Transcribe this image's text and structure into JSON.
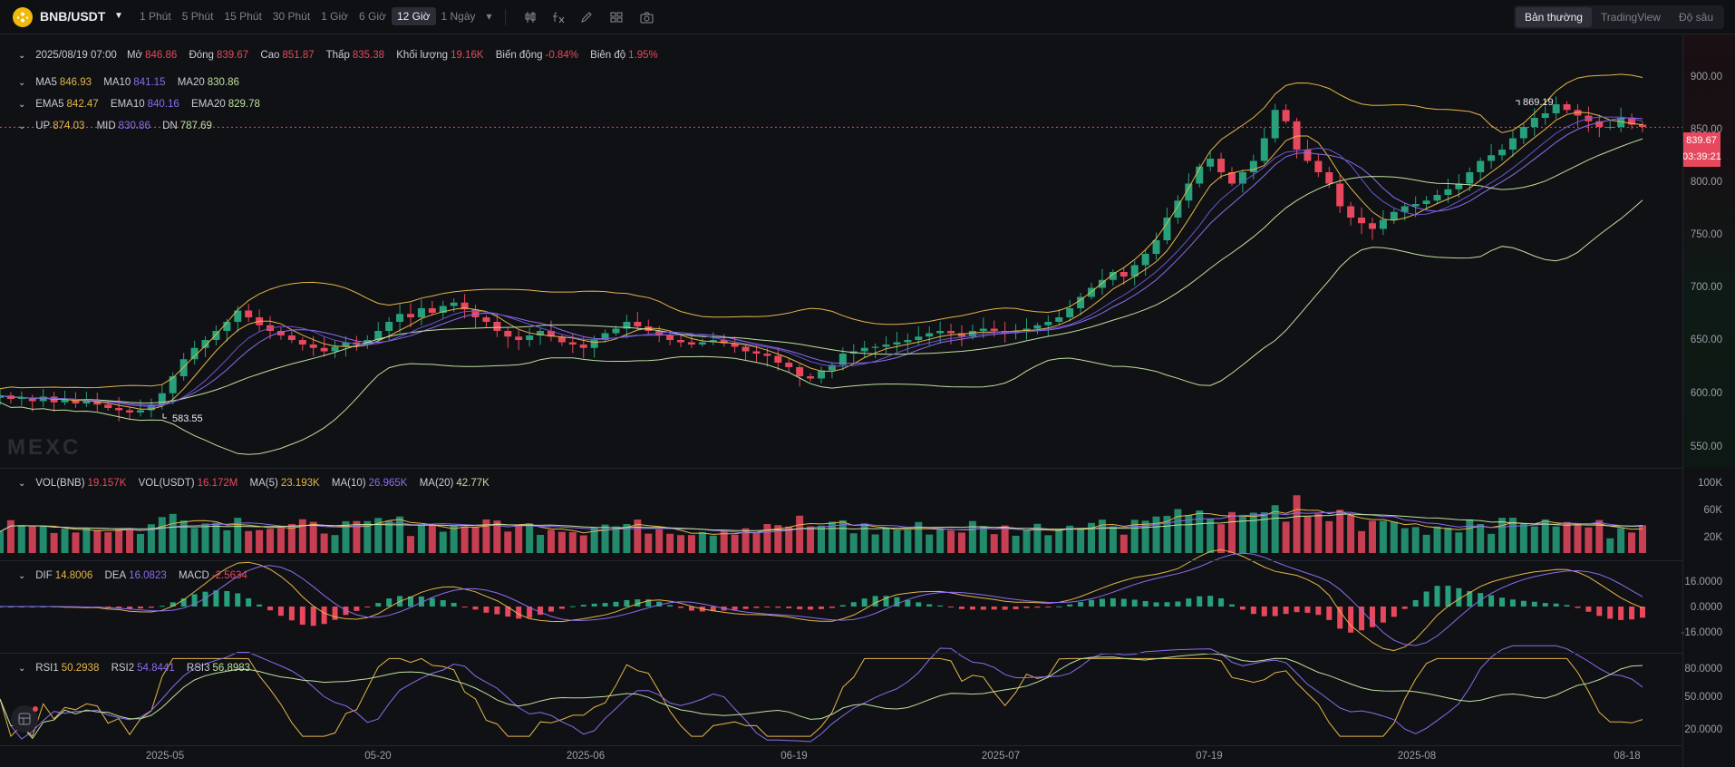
{
  "toolbar": {
    "symbol": "BNB/USDT",
    "intervals": [
      "1 Phút",
      "5 Phút",
      "15 Phút",
      "30 Phút",
      "1 Giờ",
      "6 Giờ",
      "12 Giờ",
      "1 Ngày"
    ],
    "active_interval": "12 Giờ",
    "views": [
      "Bản thường",
      "TradingView",
      "Độ sâu"
    ],
    "active_view": "Bản thường"
  },
  "ohlc": {
    "date": "2025/08/19 07:00",
    "open_label": "Mở",
    "open": "846.86",
    "close_label": "Đóng",
    "close": "839.67",
    "high_label": "Cao",
    "high": "851.87",
    "low_label": "Thấp",
    "low": "835.38",
    "volume_label": "Khối lượng",
    "volume": "19.16K",
    "change_label": "Biến động",
    "change": "-0.84%",
    "amplitude_label": "Biên độ",
    "amplitude": "1.95%"
  },
  "ma": {
    "ma5_label": "MA5",
    "ma5": "846.93",
    "ma10_label": "MA10",
    "ma10": "841.15",
    "ma20_label": "MA20",
    "ma20": "830.86"
  },
  "ema": {
    "ema5_label": "EMA5",
    "ema5": "842.47",
    "ema10_label": "EMA10",
    "ema10": "840.16",
    "ema20_label": "EMA20",
    "ema20": "829.78"
  },
  "boll": {
    "up_label": "UP",
    "up": "874.03",
    "mid_label": "MID",
    "mid": "830.86",
    "dn_label": "DN",
    "dn": "787.69"
  },
  "vol": {
    "bnb_label": "VOL(BNB)",
    "bnb": "19.157K",
    "usdt_label": "VOL(USDT)",
    "usdt": "16.172M",
    "ma5_label": "MA(5)",
    "ma5": "23.193K",
    "ma10_label": "MA(10)",
    "ma10": "26.965K",
    "ma20_label": "MA(20)",
    "ma20": "42.77K"
  },
  "macd": {
    "dif_label": "DIF",
    "dif": "14.8006",
    "dea_label": "DEA",
    "dea": "16.0823",
    "macd_label": "MACD",
    "macd": "-2.5634"
  },
  "rsi": {
    "rsi1_label": "RSI1",
    "rsi1": "50.2938",
    "rsi2_label": "RSI2",
    "rsi2": "54.8441",
    "rsi3_label": "RSI3",
    "rsi3": "56.8983"
  },
  "price_axis": [
    "900.00",
    "850.00",
    "800.00",
    "750.00",
    "700.00",
    "650.00",
    "600.00",
    "550.00"
  ],
  "vol_axis": [
    "100K",
    "60K",
    "20K"
  ],
  "macd_axis": [
    "16.0000",
    "0.0000",
    "-16.0000"
  ],
  "rsi_axis": [
    "80.0000",
    "50.0000",
    "20.0000"
  ],
  "current_price": "839.67",
  "countdown": "03:39:21",
  "high_marker": "869.19",
  "low_marker": "583.55",
  "date_axis": [
    "2025-05",
    "05-20",
    "2025-06",
    "06-19",
    "2025-07",
    "07-19",
    "2025-08",
    "08-18"
  ],
  "watermark": "MEXC",
  "colors": {
    "up": "#26a17b",
    "down": "#e8485d",
    "ma5": "#e5b54a",
    "ma10": "#8b6cf0",
    "ma20": "#bfe0a0",
    "boll": "#e5b54a"
  },
  "chart_data": {
    "type": "candlestick",
    "interval": "12h",
    "price_ylim": [
      540,
      920
    ],
    "closes": [
      603,
      600,
      601,
      598,
      602,
      597,
      600,
      596,
      599,
      595,
      592,
      590,
      588,
      590,
      595,
      605,
      620,
      635,
      645,
      652,
      660,
      668,
      678,
      672,
      665,
      660,
      656,
      652,
      648,
      645,
      642,
      646,
      650,
      648,
      652,
      660,
      668,
      675,
      672,
      680,
      676,
      682,
      685,
      679,
      672,
      668,
      660,
      655,
      652,
      656,
      660,
      655,
      650,
      648,
      645,
      652,
      658,
      662,
      668,
      664,
      660,
      656,
      652,
      650,
      648,
      650,
      652,
      649,
      646,
      642,
      640,
      638,
      632,
      628,
      620,
      618,
      625,
      630,
      640,
      642,
      645,
      646,
      648,
      650,
      652,
      655,
      658,
      660,
      658,
      655,
      660,
      662,
      660,
      658,
      660,
      662,
      665,
      668,
      672,
      680,
      690,
      698,
      705,
      712,
      708,
      718,
      728,
      740,
      760,
      775,
      790,
      805,
      812,
      800,
      790,
      800,
      810,
      830,
      855,
      845,
      820,
      810,
      800,
      790,
      770,
      760,
      755,
      750,
      758,
      765,
      770,
      772,
      775,
      780,
      785,
      790,
      800,
      810,
      815,
      820,
      830,
      840,
      848,
      852,
      860,
      855,
      850,
      845,
      840,
      840,
      848,
      842,
      840
    ],
    "volume_ylim": [
      0,
      110000
    ],
    "macd_ylim": [
      -30,
      30
    ],
    "rsi_ylim": [
      10,
      90
    ]
  }
}
